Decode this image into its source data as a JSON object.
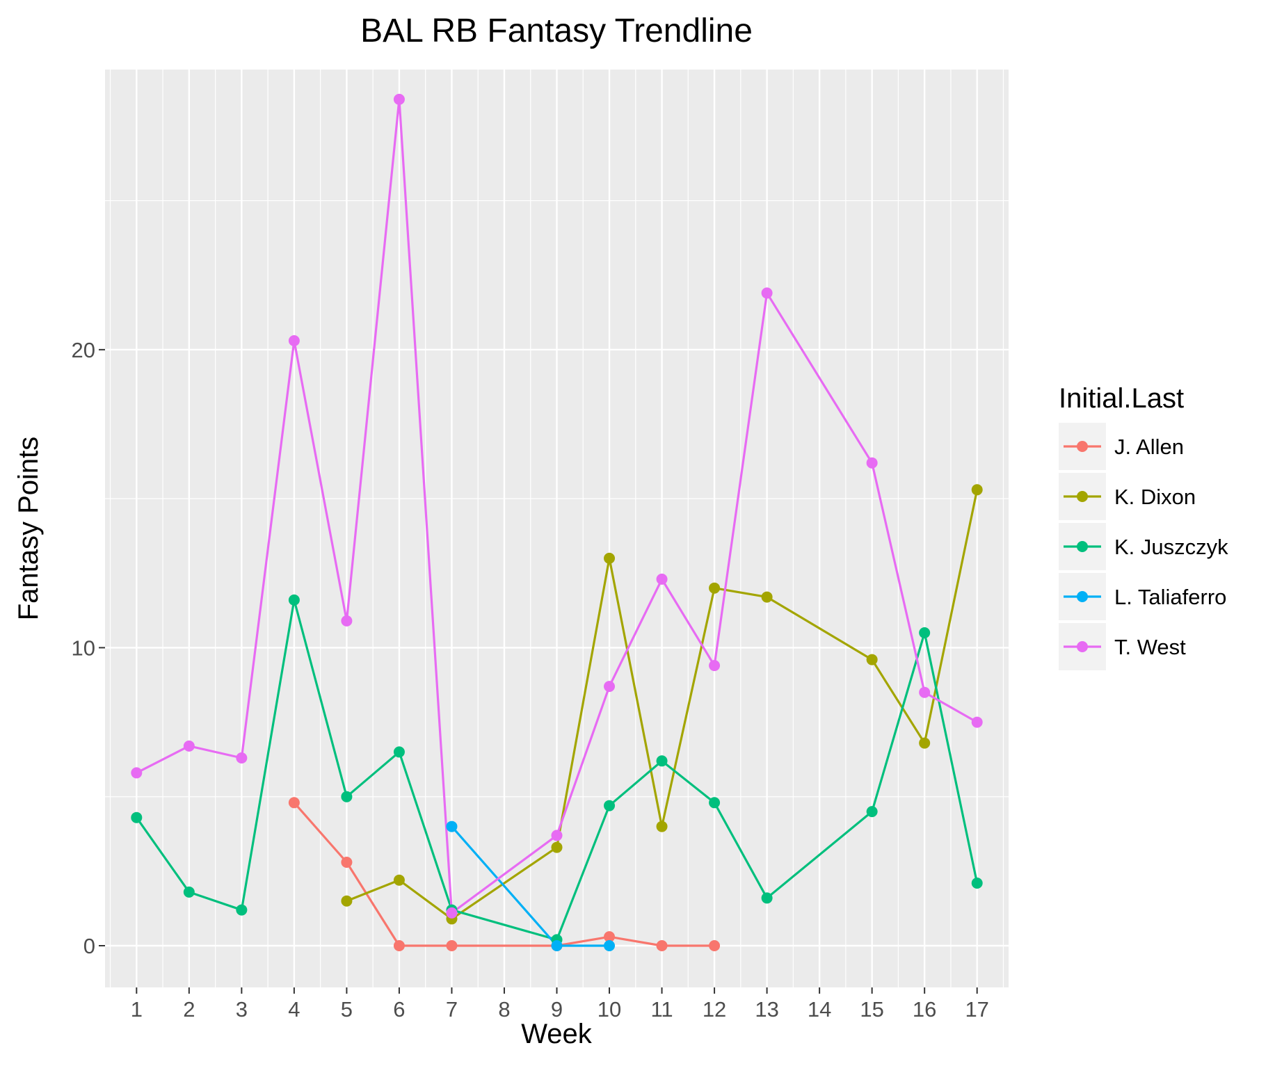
{
  "chart_data": {
    "type": "line",
    "title": "BAL RB Fantasy Trendline",
    "xlabel": "Week",
    "ylabel": "Fantasy Points",
    "categories": [
      "1",
      "2",
      "3",
      "4",
      "5",
      "6",
      "7",
      "8",
      "9",
      "10",
      "11",
      "12",
      "13",
      "14",
      "15",
      "16",
      "17"
    ],
    "ylim": [
      -1.4,
      29.4
    ],
    "yticks": [
      0,
      10,
      20
    ],
    "ytick_labels": [
      "0",
      "10",
      "20"
    ],
    "grid": true,
    "legend": {
      "title": "Initial.Last",
      "position": "right"
    },
    "series": [
      {
        "name": "J. Allen",
        "color": "#F8766D",
        "points": [
          {
            "x": "4",
            "y": 4.8
          },
          {
            "x": "5",
            "y": 2.8
          },
          {
            "x": "6",
            "y": 0
          },
          {
            "x": "7",
            "y": 0
          },
          {
            "x": "9",
            "y": 0
          },
          {
            "x": "10",
            "y": 0.3
          },
          {
            "x": "11",
            "y": 0
          },
          {
            "x": "12",
            "y": 0
          }
        ]
      },
      {
        "name": "K. Dixon",
        "color": "#A3A500",
        "points": [
          {
            "x": "5",
            "y": 1.5
          },
          {
            "x": "6",
            "y": 2.2
          },
          {
            "x": "7",
            "y": 0.9
          },
          {
            "x": "9",
            "y": 3.3
          },
          {
            "x": "10",
            "y": 13.0
          },
          {
            "x": "11",
            "y": 4.0
          },
          {
            "x": "12",
            "y": 12.0
          },
          {
            "x": "13",
            "y": 11.7
          },
          {
            "x": "15",
            "y": 9.6
          },
          {
            "x": "16",
            "y": 6.8
          },
          {
            "x": "17",
            "y": 15.3
          }
        ]
      },
      {
        "name": "K. Juszczyk",
        "color": "#00BF7D",
        "points": [
          {
            "x": "1",
            "y": 4.3
          },
          {
            "x": "2",
            "y": 1.8
          },
          {
            "x": "3",
            "y": 1.2
          },
          {
            "x": "4",
            "y": 11.6
          },
          {
            "x": "5",
            "y": 5.0
          },
          {
            "x": "6",
            "y": 6.5
          },
          {
            "x": "7",
            "y": 1.2
          },
          {
            "x": "9",
            "y": 0.2
          },
          {
            "x": "10",
            "y": 4.7
          },
          {
            "x": "11",
            "y": 6.2
          },
          {
            "x": "12",
            "y": 4.8
          },
          {
            "x": "13",
            "y": 1.6
          },
          {
            "x": "15",
            "y": 4.5
          },
          {
            "x": "16",
            "y": 10.5
          },
          {
            "x": "17",
            "y": 2.1
          }
        ]
      },
      {
        "name": "L. Taliaferro",
        "color": "#00B0F6",
        "points": [
          {
            "x": "7",
            "y": 4.0
          },
          {
            "x": "9",
            "y": 0
          },
          {
            "x": "10",
            "y": 0
          }
        ]
      },
      {
        "name": "T. West",
        "color": "#E76BF3",
        "points": [
          {
            "x": "1",
            "y": 5.8
          },
          {
            "x": "2",
            "y": 6.7
          },
          {
            "x": "3",
            "y": 6.3
          },
          {
            "x": "4",
            "y": 20.3
          },
          {
            "x": "5",
            "y": 10.9
          },
          {
            "x": "6",
            "y": 28.4
          },
          {
            "x": "7",
            "y": 1.1
          },
          {
            "x": "9",
            "y": 3.7
          },
          {
            "x": "10",
            "y": 8.7
          },
          {
            "x": "11",
            "y": 12.3
          },
          {
            "x": "12",
            "y": 9.4
          },
          {
            "x": "13",
            "y": 21.9
          },
          {
            "x": "15",
            "y": 16.2
          },
          {
            "x": "16",
            "y": 8.5
          },
          {
            "x": "17",
            "y": 7.5
          }
        ]
      }
    ]
  }
}
